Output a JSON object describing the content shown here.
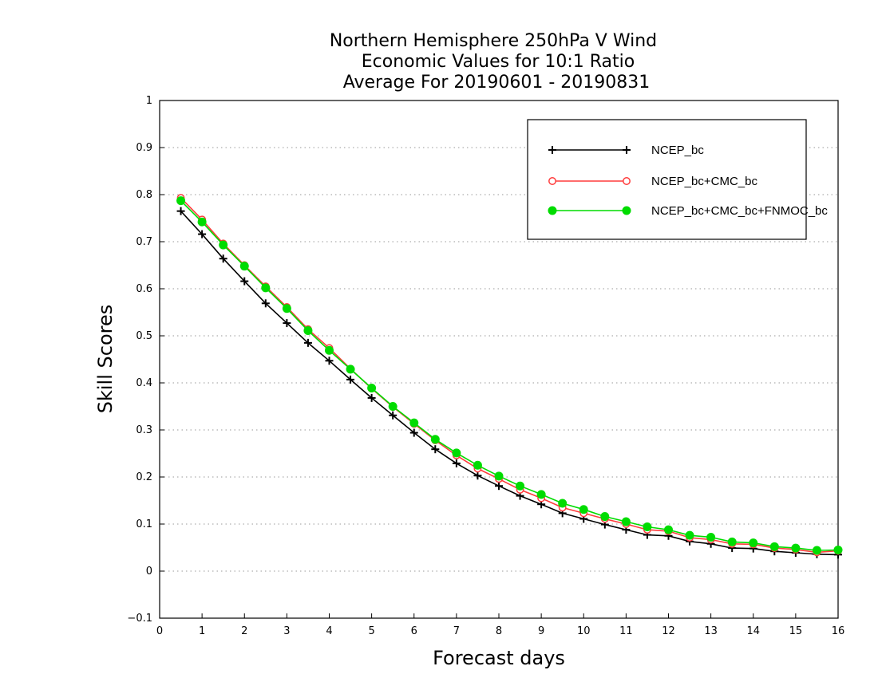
{
  "chart_data": {
    "type": "line",
    "title": [
      "Northern Hemisphere 250hPa V Wind",
      "Economic Values for 10:1 Ratio",
      "Average For 20190601 - 20190831"
    ],
    "xlabel": "Forecast days",
    "ylabel": "Skill Scores",
    "xlim": [
      0,
      16
    ],
    "ylim": [
      -0.1,
      1
    ],
    "xticks": [
      "0",
      "1",
      "2",
      "3",
      "4",
      "5",
      "6",
      "7",
      "8",
      "9",
      "10",
      "11",
      "12",
      "13",
      "14",
      "15",
      "16"
    ],
    "yticks": [
      "−0.1",
      "0",
      "0.1",
      "0.2",
      "0.3",
      "0.4",
      "0.5",
      "0.6",
      "0.7",
      "0.8",
      "0.9",
      "1"
    ],
    "grid": "horizontal dotted",
    "legend_position": "top-right",
    "x": [
      0.5,
      1,
      1.5,
      2,
      2.5,
      3,
      3.5,
      4,
      4.5,
      5,
      5.5,
      6,
      6.5,
      7,
      7.5,
      8,
      8.5,
      9,
      9.5,
      10,
      10.5,
      11,
      11.5,
      12,
      12.5,
      13,
      13.5,
      14,
      14.5,
      15,
      15.5,
      16
    ],
    "series": [
      {
        "name": "NCEP_bc",
        "color": "#000000",
        "marker": "plus",
        "values": [
          0.765,
          0.716,
          0.664,
          0.616,
          0.569,
          0.527,
          0.485,
          0.447,
          0.407,
          0.368,
          0.331,
          0.294,
          0.259,
          0.229,
          0.203,
          0.181,
          0.16,
          0.142,
          0.123,
          0.111,
          0.099,
          0.088,
          0.077,
          0.075,
          0.063,
          0.058,
          0.049,
          0.048,
          0.042,
          0.039,
          0.036,
          0.035
        ]
      },
      {
        "name": "NCEP_bc+CMC_bc",
        "color": "#ff3c3c",
        "marker": "open-circle",
        "values": [
          0.793,
          0.747,
          0.696,
          0.65,
          0.605,
          0.561,
          0.514,
          0.474,
          0.43,
          0.388,
          0.349,
          0.313,
          0.278,
          0.246,
          0.218,
          0.196,
          0.173,
          0.155,
          0.135,
          0.123,
          0.111,
          0.1,
          0.088,
          0.085,
          0.071,
          0.067,
          0.058,
          0.057,
          0.049,
          0.046,
          0.04,
          0.043
        ]
      },
      {
        "name": "NCEP_bc+CMC_bc+FNMOC_bc",
        "color": "#00dc00",
        "marker": "filled-circle",
        "values": [
          0.787,
          0.742,
          0.693,
          0.648,
          0.602,
          0.558,
          0.511,
          0.469,
          0.429,
          0.389,
          0.35,
          0.315,
          0.28,
          0.251,
          0.225,
          0.202,
          0.181,
          0.163,
          0.144,
          0.131,
          0.116,
          0.105,
          0.094,
          0.088,
          0.076,
          0.072,
          0.062,
          0.06,
          0.052,
          0.049,
          0.044,
          0.045
        ]
      }
    ]
  }
}
